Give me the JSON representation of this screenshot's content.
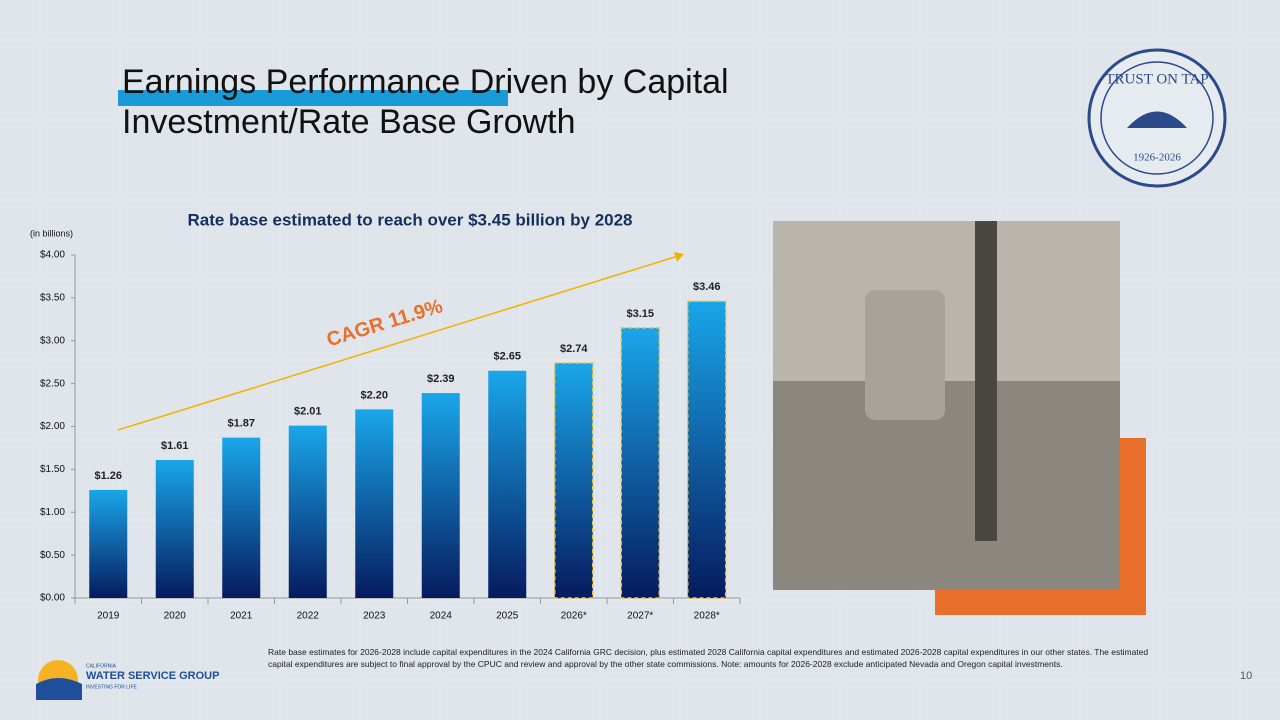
{
  "slide": {
    "title_lines": [
      "Earnings Performance Driven by Capital",
      "Investment/Rate Base Growth"
    ],
    "footnote": "Rate base estimates for 2026-2028 include capital expenditures in the 2024 California GRC decision, plus estimated 2028 California capital expenditures and estimated 2026-2028 capital expenditures in our other states. The estimated capital expenditures are subject to final approval by the CPUC and review and approval by the other state commissions. Note: amounts for 2026-2028 exclude anticipated Nevada and Oregon capital investments.",
    "page_number": "10",
    "logo": {
      "top": "CALIFORNIA",
      "name": "WATER SERVICE GROUP",
      "tagline": "INVESTING FOR LIFE"
    },
    "badge": {
      "top": "TRUST ON TAP",
      "bottom": "1926-2026"
    }
  },
  "chart_data": {
    "type": "bar",
    "title": "Rate base estimated to reach over $3.45 billion by 2028",
    "y_axis_label": "(in billions)",
    "annotation": "CAGR 11.9%",
    "categories": [
      "2019",
      "2020",
      "2021",
      "2022",
      "2023",
      "2024",
      "2025",
      "2026*",
      "2027*",
      "2028*"
    ],
    "values": [
      1.26,
      1.61,
      1.87,
      2.01,
      2.2,
      2.39,
      2.65,
      2.74,
      3.15,
      3.46
    ],
    "value_labels": [
      "$1.26",
      "$1.61",
      "$1.87",
      "$2.01",
      "$2.20",
      "$2.39",
      "$2.65",
      "$2.74",
      "$3.15",
      "$3.46"
    ],
    "estimated": [
      false,
      false,
      false,
      false,
      false,
      false,
      false,
      true,
      true,
      true
    ],
    "color_top": "#1aa6ea",
    "color_bottom": "#061b5e",
    "estimate_outline": "#f2c230",
    "ylim": [
      0,
      4
    ],
    "yticks": [
      {
        "value": 0,
        "label": "$0.00"
      },
      {
        "value": 0.5,
        "label": "$0.50"
      },
      {
        "value": 1,
        "label": "$1.00"
      },
      {
        "value": 1.5,
        "label": "$1.50"
      },
      {
        "value": 2,
        "label": "$2.00"
      },
      {
        "value": 2.5,
        "label": "$2.50"
      },
      {
        "value": 3,
        "label": "$3.00"
      },
      {
        "value": 3.5,
        "label": "$3.50"
      },
      {
        "value": 4,
        "label": "$4.00"
      }
    ],
    "grid": false
  }
}
